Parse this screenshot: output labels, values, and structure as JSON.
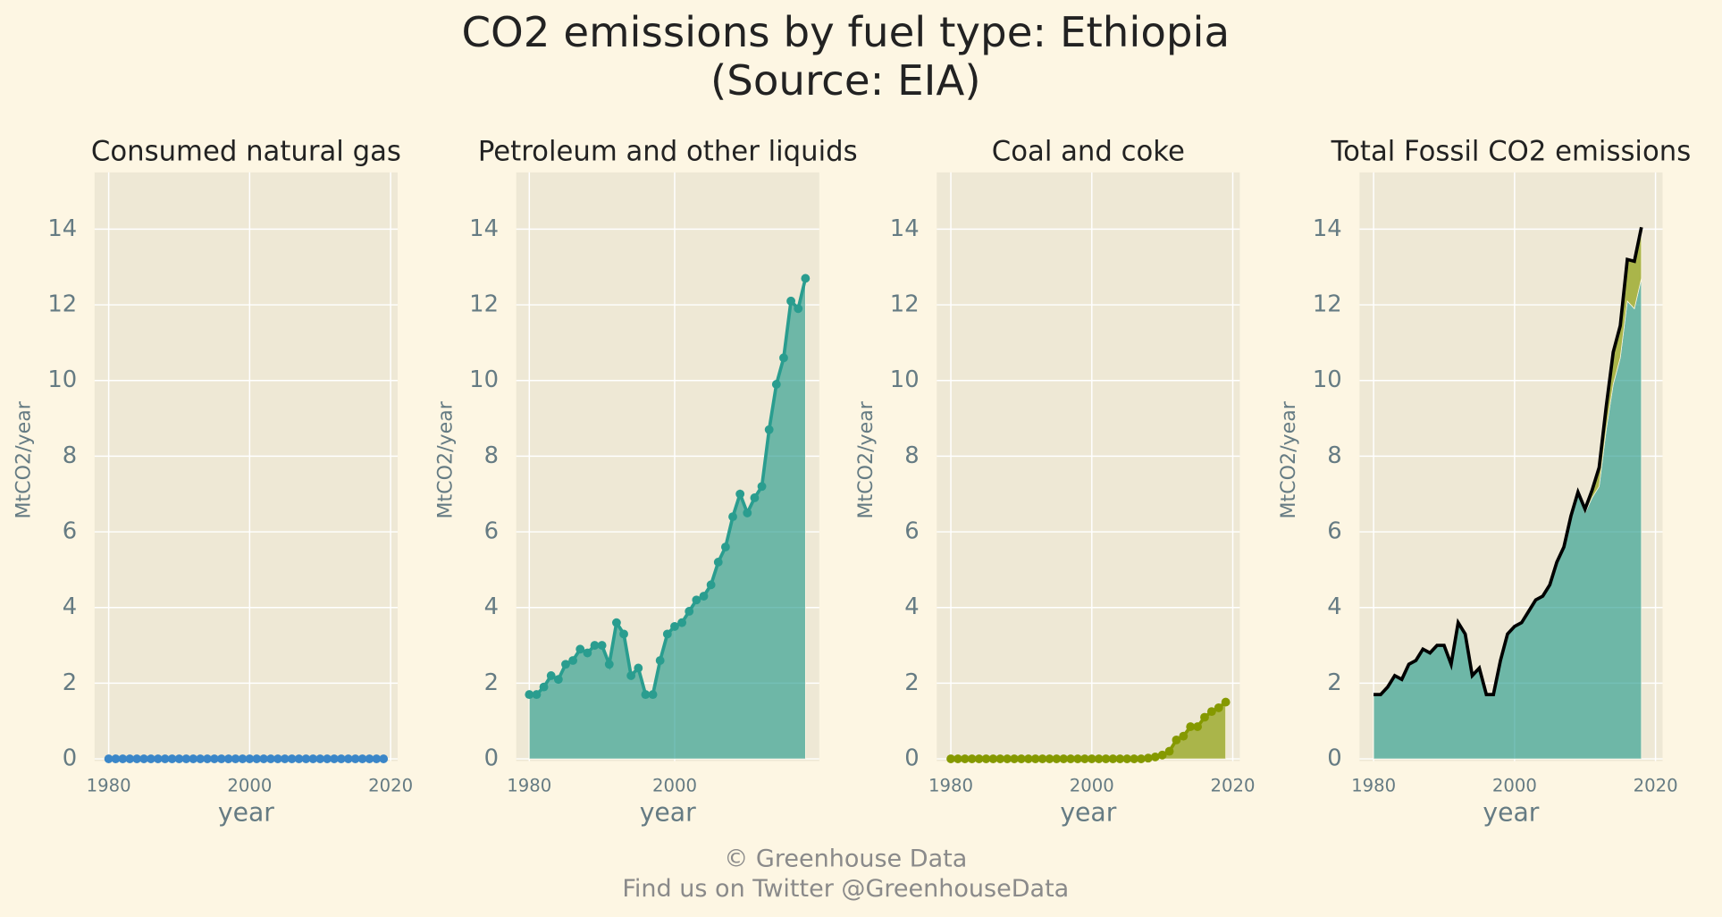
{
  "title": [
    "CO2 emissions by fuel type: Ethiopia",
    "(Source: EIA)"
  ],
  "footer": [
    "© Greenhouse Data",
    "Find us on Twitter @GreenhouseData"
  ],
  "chart_data": [
    {
      "type": "line",
      "title": "Consumed natural gas",
      "xlabel": "year",
      "ylabel": "MtCO2/year",
      "x": [
        1980,
        1981,
        1982,
        1983,
        1984,
        1985,
        1986,
        1987,
        1988,
        1989,
        1990,
        1991,
        1992,
        1993,
        1994,
        1995,
        1996,
        1997,
        1998,
        1999,
        2000,
        2001,
        2002,
        2003,
        2004,
        2005,
        2006,
        2007,
        2008,
        2009,
        2010,
        2011,
        2012,
        2013,
        2014,
        2015,
        2016,
        2017,
        2018,
        2019
      ],
      "series": [
        {
          "color": "#3a86c8",
          "kind": "line",
          "markers": true,
          "values": [
            0,
            0,
            0,
            0,
            0,
            0,
            0,
            0,
            0,
            0,
            0,
            0,
            0,
            0,
            0,
            0,
            0,
            0,
            0,
            0,
            0,
            0,
            0,
            0,
            0,
            0,
            0,
            0,
            0,
            0,
            0,
            0,
            0,
            0,
            0,
            0,
            0,
            0,
            0,
            0
          ]
        }
      ],
      "xlim": [
        1978,
        2021
      ],
      "ylim": [
        0,
        15.5
      ],
      "xticks": [
        1980,
        2000,
        2020
      ],
      "yticks": [
        0,
        2,
        4,
        6,
        8,
        10,
        12,
        14
      ],
      "grid": true
    },
    {
      "type": "area",
      "title": "Petroleum and other liquids",
      "xlabel": "year",
      "ylabel": "MtCO2/year",
      "x": [
        1980,
        1981,
        1982,
        1983,
        1984,
        1985,
        1986,
        1987,
        1988,
        1989,
        1990,
        1991,
        1992,
        1993,
        1994,
        1995,
        1996,
        1997,
        1998,
        1999,
        2000,
        2001,
        2002,
        2003,
        2004,
        2005,
        2006,
        2007,
        2008,
        2009,
        2010,
        2011,
        2012,
        2013,
        2014,
        2015,
        2016,
        2017,
        2018
      ],
      "series": [
        {
          "color": "#2a9d8f",
          "kind": "area",
          "markers": true,
          "values": [
            1.7,
            1.7,
            1.9,
            2.2,
            2.1,
            2.5,
            2.6,
            2.9,
            2.8,
            3.0,
            3.0,
            2.5,
            3.6,
            3.3,
            2.2,
            2.4,
            1.7,
            1.7,
            2.6,
            3.3,
            3.5,
            3.6,
            3.9,
            4.2,
            4.3,
            4.6,
            5.2,
            5.6,
            6.4,
            7.0,
            6.5,
            6.9,
            7.2,
            8.7,
            9.9,
            10.6,
            12.1,
            11.9,
            12.7
          ]
        }
      ],
      "xlim": [
        1978.2,
        2019.9
      ],
      "ylim": [
        0,
        15.5
      ],
      "xticks": [
        1980,
        2000
      ],
      "yticks": [
        0,
        2,
        4,
        6,
        8,
        10,
        12,
        14
      ],
      "grid": true
    },
    {
      "type": "area",
      "title": "Coal and coke",
      "xlabel": "year",
      "ylabel": "MtCO2/year",
      "x": [
        1980,
        1981,
        1982,
        1983,
        1984,
        1985,
        1986,
        1987,
        1988,
        1989,
        1990,
        1991,
        1992,
        1993,
        1994,
        1995,
        1996,
        1997,
        1998,
        1999,
        2000,
        2001,
        2002,
        2003,
        2004,
        2005,
        2006,
        2007,
        2008,
        2009,
        2010,
        2011,
        2012,
        2013,
        2014,
        2015,
        2016,
        2017,
        2018,
        2019
      ],
      "series": [
        {
          "color": "#859900",
          "kind": "area",
          "markers": true,
          "values": [
            0,
            0,
            0,
            0,
            0,
            0,
            0,
            0,
            0,
            0,
            0,
            0,
            0,
            0,
            0,
            0,
            0,
            0,
            0,
            0,
            0,
            0,
            0,
            0,
            0,
            0,
            0,
            0,
            0.02,
            0.05,
            0.1,
            0.2,
            0.5,
            0.6,
            0.85,
            0.85,
            1.1,
            1.25,
            1.35,
            1.5
          ]
        }
      ],
      "xlim": [
        1978,
        2021
      ],
      "ylim": [
        0,
        15.5
      ],
      "xticks": [
        1980,
        2000,
        2020
      ],
      "yticks": [
        0,
        2,
        4,
        6,
        8,
        10,
        12,
        14
      ],
      "grid": true
    },
    {
      "type": "stacked_area",
      "title": "Total Fossil CO2 emissions",
      "xlabel": "year",
      "ylabel": "MtCO2/year",
      "x": [
        1980,
        1981,
        1982,
        1983,
        1984,
        1985,
        1986,
        1987,
        1988,
        1989,
        1990,
        1991,
        1992,
        1993,
        1994,
        1995,
        1996,
        1997,
        1998,
        1999,
        2000,
        2001,
        2002,
        2003,
        2004,
        2005,
        2006,
        2007,
        2008,
        2009,
        2010,
        2011,
        2012,
        2013,
        2014,
        2015,
        2016,
        2017,
        2018
      ],
      "series": [
        {
          "color": "#2a9d8f",
          "kind": "area",
          "markers": false,
          "values": [
            1.7,
            1.7,
            1.9,
            2.2,
            2.1,
            2.5,
            2.6,
            2.9,
            2.8,
            3.0,
            3.0,
            2.5,
            3.6,
            3.3,
            2.2,
            2.4,
            1.7,
            1.7,
            2.6,
            3.3,
            3.5,
            3.6,
            3.9,
            4.2,
            4.3,
            4.6,
            5.2,
            5.6,
            6.4,
            7.0,
            6.5,
            6.9,
            7.2,
            8.7,
            9.9,
            10.6,
            12.1,
            11.9,
            12.7
          ]
        },
        {
          "color": "#859900",
          "kind": "area",
          "markers": false,
          "values": [
            0,
            0,
            0,
            0,
            0,
            0,
            0,
            0,
            0,
            0,
            0,
            0,
            0,
            0,
            0,
            0,
            0,
            0,
            0,
            0,
            0,
            0,
            0,
            0,
            0,
            0,
            0,
            0,
            0.02,
            0.05,
            0.1,
            0.2,
            0.5,
            0.6,
            0.85,
            0.85,
            1.1,
            1.25,
            1.35
          ]
        },
        {
          "color": "#000000",
          "kind": "line",
          "markers": false,
          "values": [
            1.7,
            1.7,
            1.9,
            2.2,
            2.1,
            2.5,
            2.6,
            2.9,
            2.8,
            3.0,
            3.0,
            2.5,
            3.6,
            3.3,
            2.2,
            2.4,
            1.7,
            1.7,
            2.6,
            3.3,
            3.5,
            3.6,
            3.9,
            4.2,
            4.3,
            4.6,
            5.2,
            5.6,
            6.42,
            7.05,
            6.6,
            7.1,
            7.7,
            9.3,
            10.75,
            11.45,
            13.2,
            13.15,
            14.05
          ]
        }
      ],
      "xlim": [
        1978,
        2021
      ],
      "ylim": [
        0,
        15.5
      ],
      "xticks": [
        1980,
        2000,
        2020
      ],
      "yticks": [
        0,
        2,
        4,
        6,
        8,
        10,
        12,
        14
      ],
      "grid": true
    }
  ]
}
